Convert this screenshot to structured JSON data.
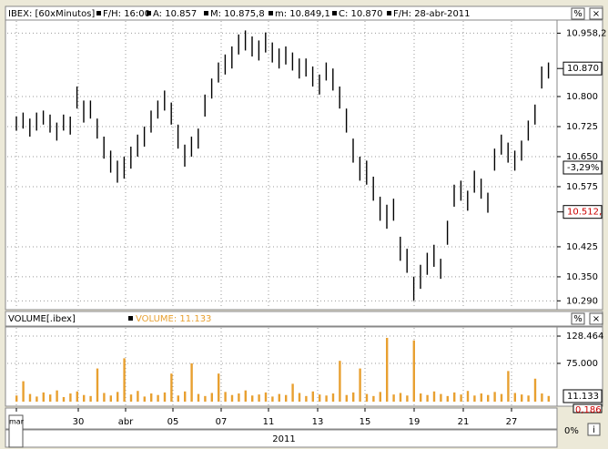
{
  "header": {
    "symbol": "IBEX: [60xMinutos]",
    "fields": [
      "F/H: 16:00",
      "A: 10.857",
      "M: 10.875,8",
      "m: 10.849,1",
      "C: 10.870",
      "F/H: 28-abr-2011"
    ]
  },
  "buttons": [
    "%",
    "×"
  ],
  "chart_data": [
    {
      "type": "hilo",
      "color": "#000000",
      "grid": true,
      "ylim": [
        10268,
        10991
      ],
      "yticks": [
        {
          "value": 10958.2,
          "label": "10.958,2"
        },
        {
          "value": 10800,
          "label": "10.800"
        },
        {
          "value": 10725,
          "label": "10.725"
        },
        {
          "value": 10650,
          "label": "10.650"
        },
        {
          "value": 10575,
          "label": "10.575"
        },
        {
          "value": 10425,
          "label": "10.425"
        },
        {
          "value": 10350,
          "label": "10.350"
        },
        {
          "value": 10290,
          "label": "10.290"
        }
      ],
      "markers": [
        {
          "value": 10870,
          "label": "10.870",
          "color": "#000000"
        },
        {
          "value": 10512,
          "label": "10.512,",
          "color": "#cc0000"
        }
      ],
      "change_label": "-3,29%",
      "high": [
        10750,
        10760,
        10745,
        10760,
        10765,
        10755,
        10735,
        10755,
        10750,
        10825,
        10790,
        10790,
        10745,
        10700,
        10665,
        10640,
        10650,
        10675,
        10705,
        10725,
        10765,
        10790,
        10815,
        10785,
        10730,
        10680,
        10700,
        10720,
        10805,
        10845,
        10885,
        10905,
        10925,
        10955,
        10965,
        10950,
        10940,
        10960,
        10935,
        10920,
        10925,
        10910,
        10895,
        10895,
        10875,
        10855,
        10885,
        10870,
        10825,
        10770,
        10695,
        10650,
        10640,
        10600,
        10550,
        10530,
        10545,
        10450,
        10420,
        10350,
        10380,
        10410,
        10430,
        10395,
        10490,
        10580,
        10590,
        10565,
        10615,
        10595,
        10560,
        10670,
        10705,
        10685,
        10665,
        10690,
        10740,
        10780,
        10875,
        10885
      ],
      "low": [
        10715,
        10720,
        10700,
        10715,
        10730,
        10710,
        10690,
        10715,
        10705,
        10770,
        10735,
        10745,
        10695,
        10645,
        10610,
        10585,
        10595,
        10620,
        10650,
        10675,
        10710,
        10745,
        10765,
        10730,
        10670,
        10625,
        10650,
        10670,
        10750,
        10795,
        10835,
        10855,
        10870,
        10905,
        10915,
        10900,
        10890,
        10910,
        10885,
        10870,
        10880,
        10865,
        10845,
        10850,
        10825,
        10805,
        10840,
        10815,
        10770,
        10710,
        10635,
        10590,
        10580,
        10540,
        10490,
        10470,
        10490,
        10390,
        10360,
        10290,
        10320,
        10355,
        10375,
        10345,
        10430,
        10525,
        10540,
        10515,
        10560,
        10545,
        10510,
        10615,
        10655,
        10635,
        10615,
        10640,
        10690,
        10730,
        10820,
        10845
      ]
    },
    {
      "type": "bar",
      "title": "VOLUME[.ibex]",
      "legend": "VOLUME: 11.133",
      "color": "#e8a030",
      "ylim": [
        0,
        141000
      ],
      "yticks": [
        {
          "value": 128464,
          "label": "128.464"
        },
        {
          "value": 75000,
          "label": "75.000"
        }
      ],
      "last_label": "11.133",
      "low_label": "0,186",
      "values": [
        12000,
        40000,
        15000,
        10000,
        18000,
        14000,
        22000,
        9000,
        16000,
        20000,
        13000,
        11000,
        65000,
        17000,
        12000,
        19000,
        85000,
        14000,
        21000,
        10000,
        16000,
        13000,
        18000,
        55000,
        12000,
        20000,
        75000,
        15000,
        11000,
        17000,
        55000,
        19000,
        13000,
        16000,
        22000,
        12000,
        14000,
        18000,
        10000,
        15000,
        13000,
        35000,
        17000,
        11000,
        20000,
        14000,
        12000,
        16000,
        80000,
        13000,
        18000,
        65000,
        15000,
        11000,
        19000,
        125000,
        14000,
        17000,
        12000,
        120000,
        16000,
        13000,
        20000,
        15000,
        11000,
        18000,
        14000,
        21000,
        12000,
        16000,
        13000,
        19000,
        15000,
        60000,
        17000,
        14000,
        12000,
        45000,
        16000,
        11133
      ]
    },
    {
      "type": "axis",
      "x_labels": [
        "mar",
        "30",
        "abr",
        "05",
        "07",
        "11",
        "13",
        "15",
        "19",
        "21",
        "27"
      ],
      "year_label": "2011",
      "zoom_label": "0%",
      "info_button": "i"
    }
  ]
}
